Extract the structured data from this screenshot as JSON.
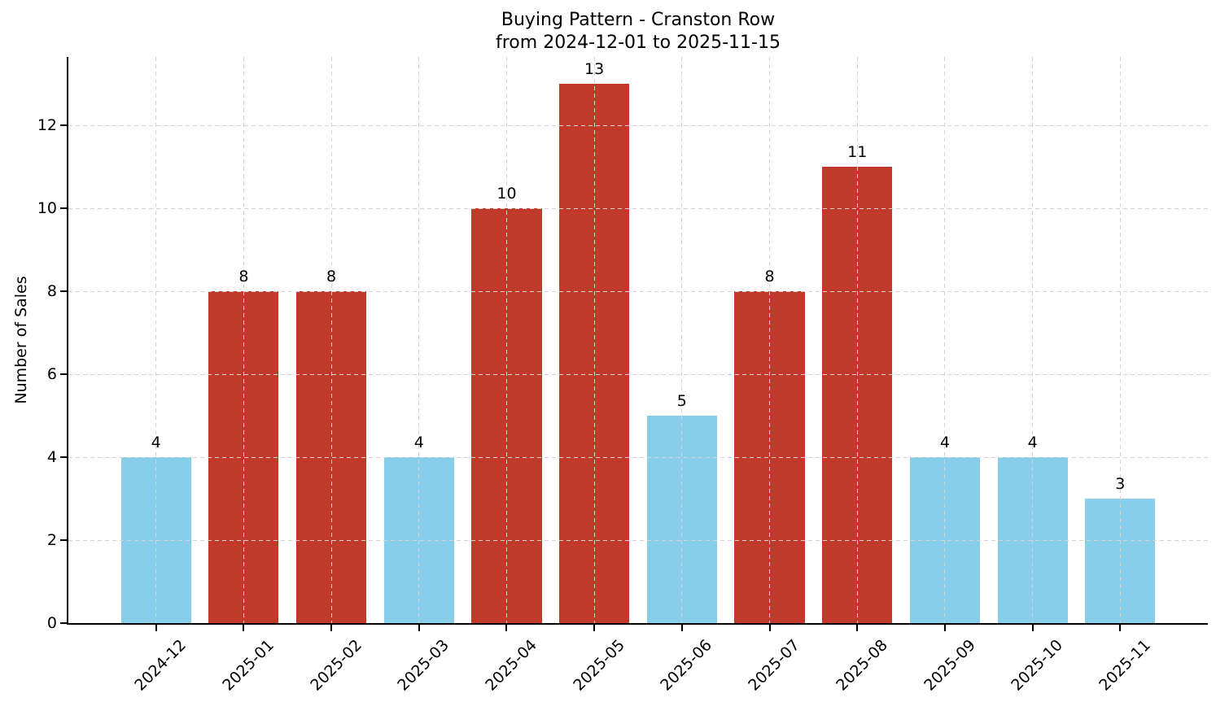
{
  "chart_data": {
    "type": "bar",
    "title": "Buying Pattern - Cranston Row",
    "subtitle": "from 2024-12-01 to 2025-11-15",
    "ylabel": "Number of Sales",
    "xlabel": "",
    "categories": [
      "2024-12",
      "2025-01",
      "2025-02",
      "2025-03",
      "2025-04",
      "2025-05",
      "2025-06",
      "2025-07",
      "2025-08",
      "2025-09",
      "2025-10",
      "2025-11"
    ],
    "values": [
      4,
      8,
      8,
      4,
      10,
      13,
      5,
      8,
      11,
      4,
      4,
      3
    ],
    "bar_colors": [
      "#87CEEB",
      "#C0392B",
      "#C0392B",
      "#87CEEB",
      "#C0392B",
      "#C0392B",
      "#87CEEB",
      "#C0392B",
      "#C0392B",
      "#87CEEB",
      "#87CEEB",
      "#87CEEB"
    ],
    "value_labels_shown": true,
    "yticks": [
      0,
      2,
      4,
      6,
      8,
      10,
      12
    ],
    "ylim": [
      0,
      13.65
    ],
    "grid": true,
    "legend": "none",
    "x_tick_rotation_deg": 45,
    "colors": {
      "bar_low": "#87CEEB",
      "bar_high": "#C0392B",
      "grid": "#d4d4d4",
      "axis": "#000000",
      "text": "#000000",
      "background": "#ffffff"
    }
  }
}
